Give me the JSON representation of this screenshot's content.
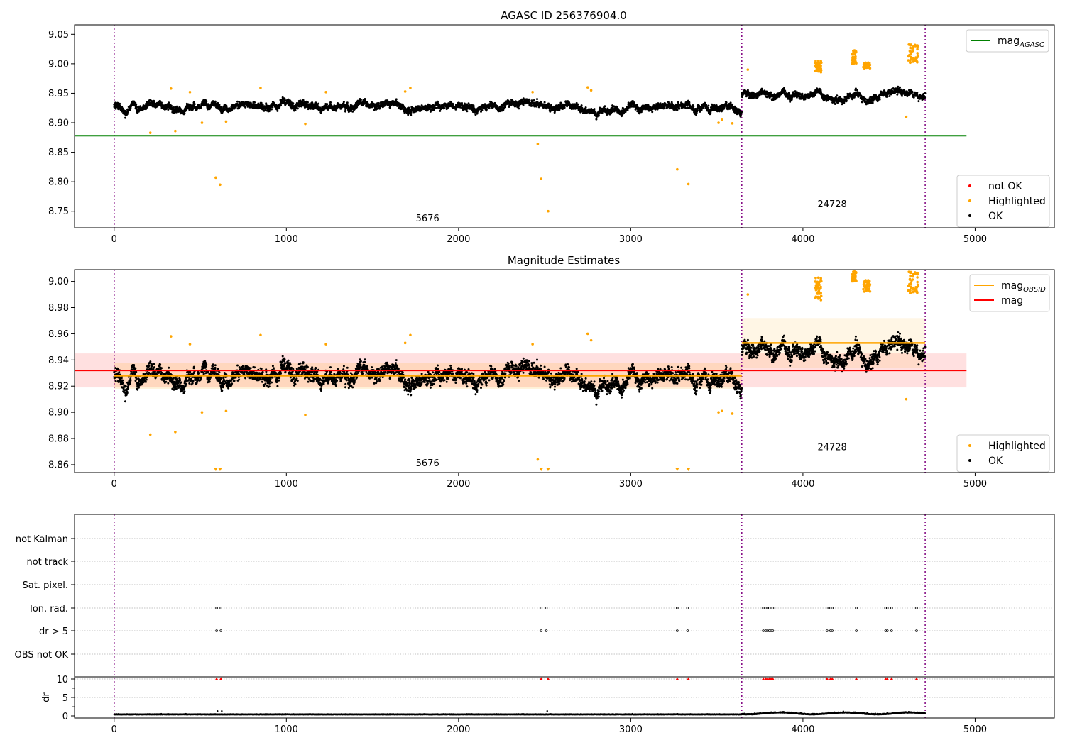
{
  "chart_data": [
    {
      "type": "scatter",
      "title": "AGASC ID 256376904.0",
      "xlim": [
        -230,
        5460
      ],
      "ylim": [
        8.722,
        9.066
      ],
      "xticks": [
        "0",
        "1000",
        "2000",
        "3000",
        "4000",
        "5000"
      ],
      "yticks": [
        "8.75",
        "8.80",
        "8.85",
        "8.90",
        "8.95",
        "9.00",
        "9.05"
      ],
      "obsid_boundaries": [
        0,
        3645,
        4710
      ],
      "obsid_labels": [
        {
          "text": "5676",
          "x": 1820,
          "y": 8.733
        },
        {
          "text": "24728",
          "x": 4170,
          "y": 8.757
        }
      ],
      "lines": [
        {
          "name": "mag",
          "sub": "AGASC",
          "y": 8.878,
          "x": [
            -230,
            4950
          ],
          "color": "#008000"
        }
      ],
      "series_segments": [
        {
          "x": [
            0,
            3645
          ],
          "base": 8.928,
          "noise": 0.016
        },
        {
          "x": [
            3645,
            4710
          ],
          "base": 8.947,
          "noise": 0.015
        }
      ],
      "highlighted": [
        [
          210,
          8.883
        ],
        [
          330,
          8.958
        ],
        [
          355,
          8.886
        ],
        [
          440,
          8.952
        ],
        [
          510,
          8.9
        ],
        [
          590,
          8.807
        ],
        [
          615,
          8.795
        ],
        [
          650,
          8.902
        ],
        [
          850,
          8.959
        ],
        [
          1110,
          8.898
        ],
        [
          1230,
          8.952
        ],
        [
          1690,
          8.953
        ],
        [
          1720,
          8.959
        ],
        [
          2430,
          8.952
        ],
        [
          2460,
          8.864
        ],
        [
          2480,
          8.805
        ],
        [
          2520,
          8.75
        ],
        [
          2750,
          8.96
        ],
        [
          2770,
          8.955
        ],
        [
          3270,
          8.821
        ],
        [
          3335,
          8.796
        ],
        [
          3510,
          8.9
        ],
        [
          3530,
          8.905
        ],
        [
          3590,
          8.899
        ],
        [
          3680,
          8.99
        ],
        [
          4600,
          8.91
        ]
      ],
      "highlighted_clusters": [
        {
          "x": [
            4070,
            4110
          ],
          "y": [
            8.985,
            9.005
          ]
        },
        {
          "x": [
            4285,
            4310
          ],
          "y": [
            9.0,
            9.024
          ]
        },
        {
          "x": [
            4350,
            4390
          ],
          "y": [
            8.992,
            9.002
          ]
        },
        {
          "x": [
            4610,
            4670
          ],
          "y": [
            9.0,
            9.034
          ]
        }
      ],
      "legends": [
        {
          "position": "top-right",
          "entries": [
            {
              "label": "mag",
              "sub": "AGASC",
              "kind": "line",
              "color": "#008000"
            }
          ]
        },
        {
          "position": "lower-right",
          "entries": [
            {
              "label": "not OK",
              "kind": "marker",
              "color": "#ff0000"
            },
            {
              "label": "Highlighted",
              "kind": "marker",
              "color": "#ffa500"
            },
            {
              "label": "OK",
              "kind": "marker",
              "color": "#000000"
            }
          ]
        }
      ]
    },
    {
      "type": "scatter",
      "title": "Magnitude Estimates",
      "xlim": [
        -230,
        5460
      ],
      "ylim": [
        8.854,
        9.009
      ],
      "xticks": [
        "0",
        "1000",
        "2000",
        "3000",
        "4000",
        "5000"
      ],
      "yticks": [
        "8.86",
        "8.88",
        "8.90",
        "8.92",
        "8.94",
        "8.96",
        "8.98",
        "9.00"
      ],
      "obsid_boundaries": [
        0,
        3645,
        4710
      ],
      "obsid_labels": [
        {
          "text": "5676",
          "x": 1820,
          "y": 8.859
        },
        {
          "text": "24728",
          "x": 4170,
          "y": 8.871
        }
      ],
      "lines": [
        {
          "name": "mag",
          "sub": "OBSID",
          "color": "#ffa500",
          "segments": [
            {
              "x": [
                0,
                3645
              ],
              "y": 8.928
            },
            {
              "x": [
                3645,
                4710
              ],
              "y": 8.953
            }
          ]
        },
        {
          "name": "mag",
          "color": "#ff0000",
          "y": 8.932,
          "x": [
            -230,
            4950
          ]
        }
      ],
      "bands": [
        {
          "color": "#ff0000",
          "opacity": 0.12,
          "x": [
            -230,
            4950
          ],
          "y": [
            8.919,
            8.945
          ]
        },
        {
          "color": "#ffa500",
          "opacity": 0.15,
          "x": [
            0,
            3645
          ],
          "y": [
            8.918,
            8.938
          ]
        },
        {
          "color": "#ffa500",
          "opacity": 0.1,
          "x": [
            3645,
            4710
          ],
          "y": [
            8.934,
            8.972
          ]
        }
      ],
      "series_segments": [
        {
          "x": [
            0,
            3645
          ],
          "base": 8.928,
          "noise": 0.016
        },
        {
          "x": [
            3645,
            4710
          ],
          "base": 8.947,
          "noise": 0.015
        }
      ],
      "highlighted": [
        [
          210,
          8.883
        ],
        [
          330,
          8.958
        ],
        [
          355,
          8.885
        ],
        [
          440,
          8.952
        ],
        [
          510,
          8.9
        ],
        [
          650,
          8.901
        ],
        [
          850,
          8.959
        ],
        [
          1110,
          8.898
        ],
        [
          1230,
          8.952
        ],
        [
          1690,
          8.953
        ],
        [
          1720,
          8.959
        ],
        [
          2430,
          8.952
        ],
        [
          2460,
          8.864
        ],
        [
          2750,
          8.96
        ],
        [
          2770,
          8.955
        ],
        [
          3510,
          8.9
        ],
        [
          3530,
          8.901
        ],
        [
          3590,
          8.899
        ],
        [
          3680,
          8.99
        ],
        [
          4600,
          8.91
        ]
      ],
      "highlighted_clusters": [
        {
          "x": [
            4070,
            4110
          ],
          "y": [
            8.985,
            9.003
          ]
        },
        {
          "x": [
            4285,
            4310
          ],
          "y": [
            9.0,
            9.008
          ]
        },
        {
          "x": [
            4350,
            4390
          ],
          "y": [
            8.992,
            9.001
          ]
        },
        {
          "x": [
            4610,
            4670
          ],
          "y": [
            8.99,
            9.008
          ]
        }
      ],
      "offscale_markers": [
        590,
        615,
        2480,
        2520,
        3270,
        3335
      ],
      "legends": [
        {
          "position": "top-right",
          "entries": [
            {
              "label": "mag",
              "sub": "OBSID",
              "kind": "line",
              "color": "#ffa500"
            },
            {
              "label": "mag",
              "kind": "line",
              "color": "#ff0000"
            }
          ]
        },
        {
          "position": "lower-right",
          "entries": [
            {
              "label": "Highlighted",
              "kind": "marker",
              "color": "#ffa500"
            },
            {
              "label": "OK",
              "kind": "marker",
              "color": "#000000"
            }
          ]
        }
      ]
    },
    {
      "type": "scatter",
      "title": "",
      "xlim": [
        -230,
        5460
      ],
      "xticks": [
        "0",
        "1000",
        "2000",
        "3000",
        "4000",
        "5000"
      ],
      "flag_categories": [
        "not Kalman",
        "not track",
        "Sat. pixel.",
        "Ion. rad.",
        "dr > 5",
        "OBS not OK"
      ],
      "flag_points": {
        "Ion. rad.": [
          595,
          620,
          2480,
          2510,
          3270,
          3330,
          3770,
          3785,
          3795,
          3805,
          3815,
          3825,
          4140,
          4160,
          4170,
          4310,
          4480,
          4490,
          4515,
          4660
        ],
        "dr > 5": [
          595,
          620,
          2480,
          2510,
          3270,
          3330,
          3770,
          3785,
          3795,
          3805,
          3815,
          3825,
          4140,
          4160,
          4170,
          4310,
          4480,
          4490,
          4515,
          4660
        ]
      },
      "dr_ylabel": "dr",
      "dr_yticks": [
        "0",
        "5",
        "10"
      ],
      "dr_ylim": [
        -0.5,
        10.5
      ],
      "dr_markers": [
        595,
        620,
        2480,
        2520,
        3270,
        3335,
        3770,
        3785,
        3795,
        3805,
        3815,
        3825,
        4140,
        4160,
        4170,
        4310,
        4480,
        4490,
        4515,
        4660
      ],
      "dr_segments": [
        {
          "x": [
            0,
            3645
          ],
          "base": 0.35,
          "noise": 0.15
        },
        {
          "x": [
            3645,
            4710
          ],
          "base": 0.6,
          "noise": 0.25
        }
      ]
    }
  ]
}
